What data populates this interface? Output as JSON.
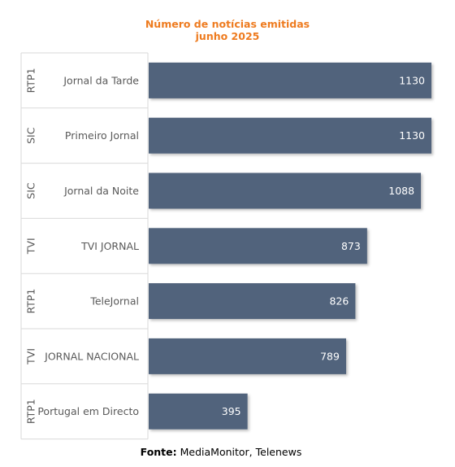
{
  "header": {
    "title_line1": "Número de notícias emitidas",
    "title_line2": "junho 2025"
  },
  "footer": {
    "label": "Fonte:",
    "text": " MediaMonitor, Telenews"
  },
  "colors": {
    "bar": "#51647c",
    "title": "#ee7b1f",
    "grid": "#d9d9d9",
    "category_text": "#595959",
    "value_text": "#ffffff"
  },
  "chart_data": {
    "type": "bar",
    "orientation": "horizontal",
    "title": "Número de notícias emitidas junho 2025",
    "categories": [
      {
        "group": "RTP1",
        "label": "Jornal da Tarde"
      },
      {
        "group": "SIC",
        "label": "Primeiro Jornal"
      },
      {
        "group": "SIC",
        "label": "Jornal da Noite"
      },
      {
        "group": "TVI",
        "label": "TVI JORNAL"
      },
      {
        "group": "RTP1",
        "label": "TeleJornal"
      },
      {
        "group": "TVI",
        "label": "JORNAL NACIONAL"
      },
      {
        "group": "RTP1",
        "label": "Portugal em Directo"
      }
    ],
    "values": [
      1130,
      1130,
      1088,
      873,
      826,
      789,
      395
    ],
    "xlim": [
      0,
      1130
    ],
    "data_labels": true,
    "grid": false,
    "legend": "none"
  }
}
